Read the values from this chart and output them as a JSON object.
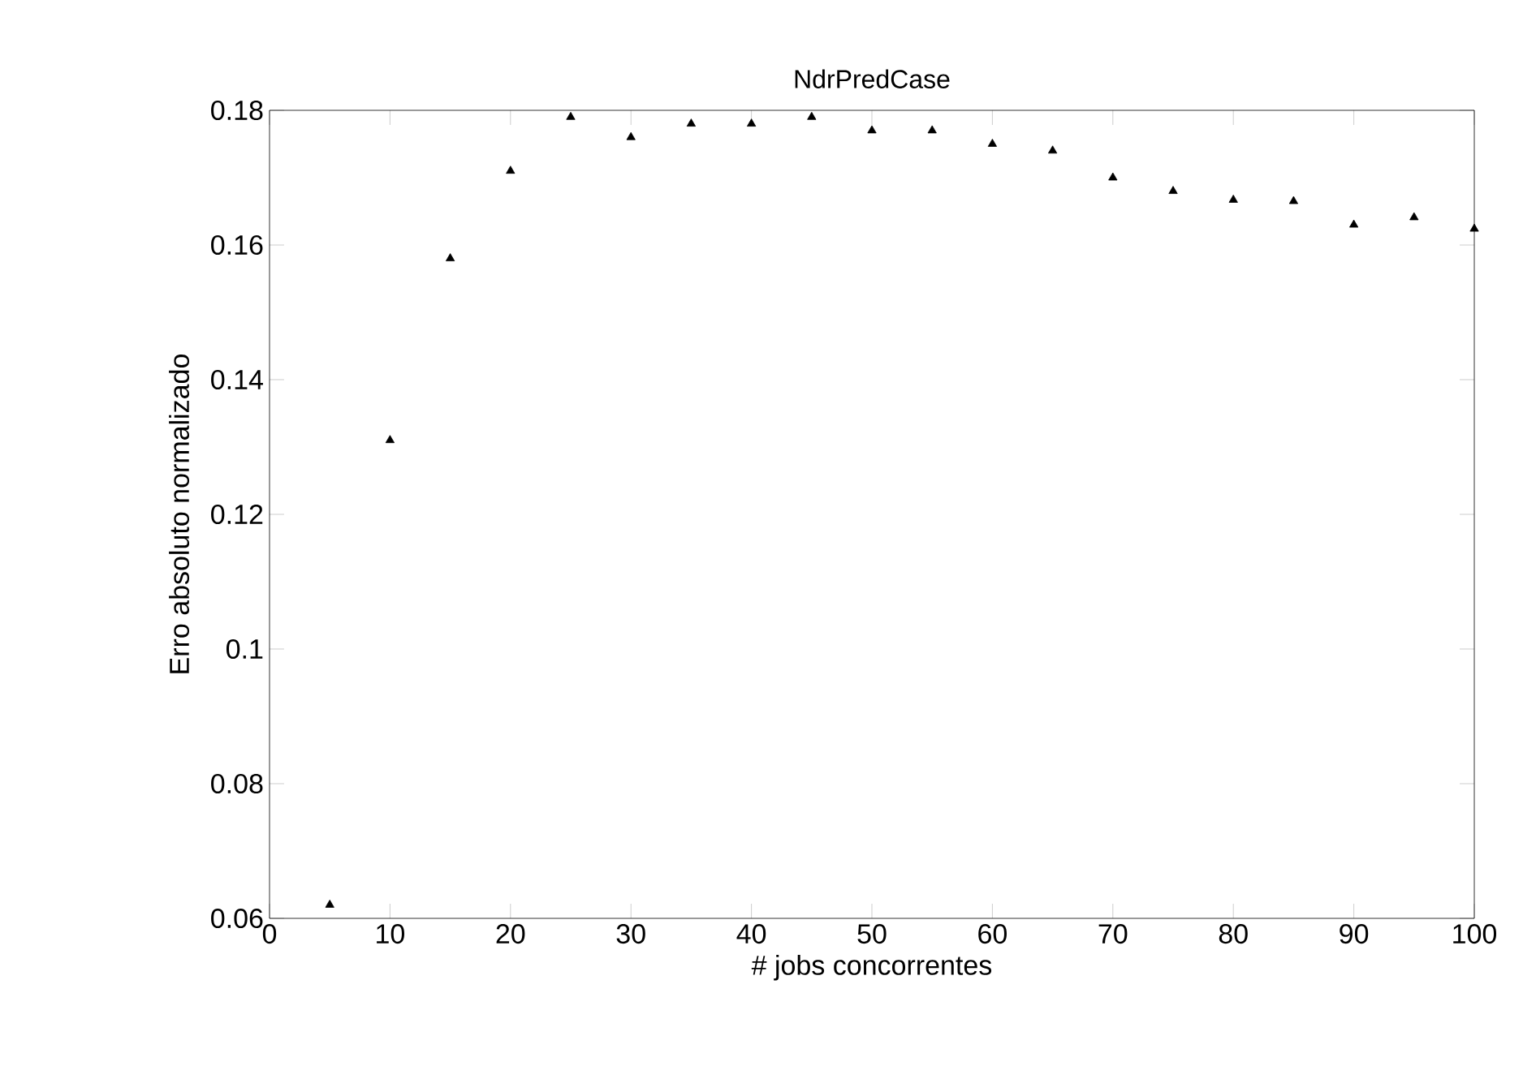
{
  "chart_data": {
    "type": "scatter",
    "title": "NdrPredCase",
    "xlabel": "# jobs concorrentes",
    "ylabel": "Erro absoluto normalizado",
    "series": [
      {
        "color": "#000000",
        "x": [
          5,
          10,
          15,
          20,
          25,
          30,
          35,
          40,
          45,
          50,
          55,
          60,
          65,
          70,
          75,
          80,
          85,
          90,
          95,
          100
        ],
        "values": [
          0.062,
          0.131,
          0.158,
          0.171,
          0.179,
          0.176,
          0.178,
          0.178,
          0.179,
          0.177,
          0.177,
          0.175,
          0.174,
          0.17,
          0.168,
          0.1667,
          0.1665,
          0.163,
          0.1641,
          0.1624
        ]
      }
    ],
    "marker": "triangle",
    "xlim": [
      0,
      100
    ],
    "xticks": [
      0,
      10,
      20,
      30,
      40,
      50,
      60,
      70,
      80,
      90,
      100
    ],
    "ylim": [
      0.06,
      0.18
    ],
    "yticks": [
      0.06,
      0.08,
      0.1,
      0.12,
      0.14,
      0.16,
      0.18
    ],
    "grid": false,
    "legend": false
  }
}
